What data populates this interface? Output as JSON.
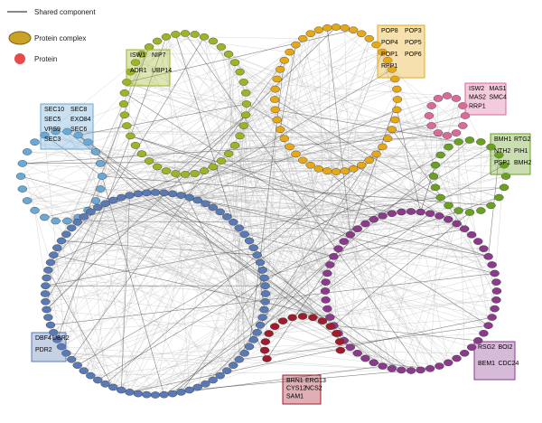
{
  "legend": {
    "items": [
      "Shared component",
      "Protein complex",
      "Protein"
    ]
  },
  "complexes": [
    {
      "labels": [
        "ISW1",
        "NIP7",
        "ADR1",
        "UBP14"
      ]
    },
    {
      "labels": [
        "POP8",
        "POP3",
        "POP4",
        "POP5",
        "POP1",
        "POP6",
        "RPP1"
      ]
    },
    {
      "labels": [
        "ISW2",
        "MAS1",
        "MAS2",
        "SMC4",
        "RRP1"
      ]
    },
    {
      "labels": [
        "BMH1",
        "RTG2",
        "NTH2",
        "PIH1",
        "PSP1",
        "BMH2"
      ]
    },
    {
      "labels": [
        "SEC10",
        "SEC8",
        "SEC5",
        "EXO84",
        "VPS9",
        "SEC6",
        "SEC3"
      ]
    },
    {
      "labels": [
        "DBF4",
        "UBR2",
        "PDR2"
      ]
    },
    {
      "labels": [
        "RSG2",
        "BOI2",
        "BEM1",
        "CDC24"
      ]
    },
    {
      "labels": [
        "BRN1",
        "ERG13",
        "CYS12",
        "NCS2",
        "SAM1"
      ]
    }
  ]
}
